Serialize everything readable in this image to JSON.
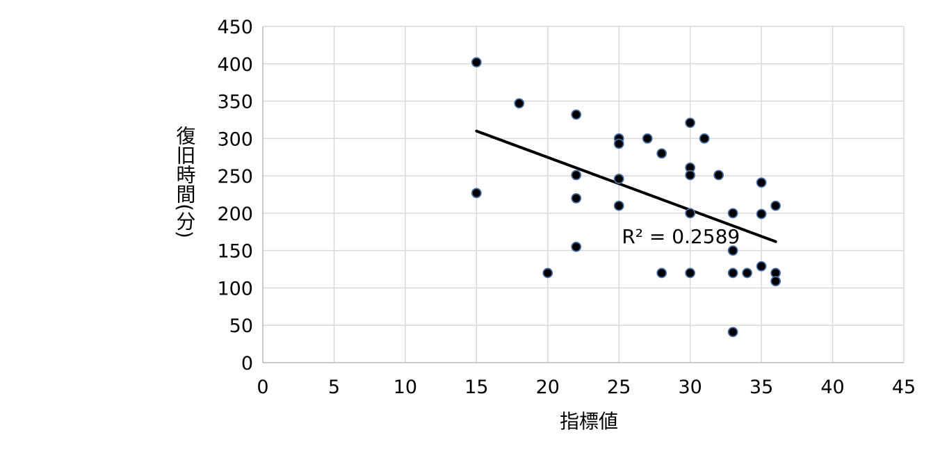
{
  "chart_data": {
    "type": "scatter",
    "xlabel": "指標値",
    "ylabel": "復旧時間(分)",
    "xlim": [
      0,
      45
    ],
    "ylim": [
      0,
      450
    ],
    "xticks": [
      0,
      5,
      10,
      15,
      20,
      25,
      30,
      35,
      40,
      45
    ],
    "yticks": [
      0,
      50,
      100,
      150,
      200,
      250,
      300,
      350,
      400,
      450
    ],
    "grid": true,
    "marker_color": "#000000",
    "marker_edge_color": "#4a6fa5",
    "trendline_color": "#000000",
    "points": [
      {
        "x": 15,
        "y": 402
      },
      {
        "x": 15,
        "y": 227
      },
      {
        "x": 18,
        "y": 347
      },
      {
        "x": 20,
        "y": 120
      },
      {
        "x": 22,
        "y": 332
      },
      {
        "x": 22,
        "y": 251
      },
      {
        "x": 22,
        "y": 220
      },
      {
        "x": 22,
        "y": 155
      },
      {
        "x": 25,
        "y": 300
      },
      {
        "x": 25,
        "y": 293
      },
      {
        "x": 25,
        "y": 246
      },
      {
        "x": 25,
        "y": 210
      },
      {
        "x": 27,
        "y": 300
      },
      {
        "x": 28,
        "y": 280
      },
      {
        "x": 28,
        "y": 120
      },
      {
        "x": 30,
        "y": 321
      },
      {
        "x": 30,
        "y": 261
      },
      {
        "x": 30,
        "y": 251
      },
      {
        "x": 30,
        "y": 200
      },
      {
        "x": 30,
        "y": 120
      },
      {
        "x": 31,
        "y": 300
      },
      {
        "x": 32,
        "y": 251
      },
      {
        "x": 33,
        "y": 200
      },
      {
        "x": 33,
        "y": 150
      },
      {
        "x": 33,
        "y": 120
      },
      {
        "x": 33,
        "y": 41
      },
      {
        "x": 34,
        "y": 120
      },
      {
        "x": 35,
        "y": 241
      },
      {
        "x": 35,
        "y": 199
      },
      {
        "x": 35,
        "y": 129
      },
      {
        "x": 36,
        "y": 210
      },
      {
        "x": 36,
        "y": 120
      },
      {
        "x": 36,
        "y": 109
      }
    ],
    "trendline": {
      "x1": 15,
      "y1": 310,
      "x2": 36,
      "y2": 162
    },
    "annotation": {
      "text": "R² = 0.2589",
      "x": 25.2,
      "y": 160
    }
  }
}
